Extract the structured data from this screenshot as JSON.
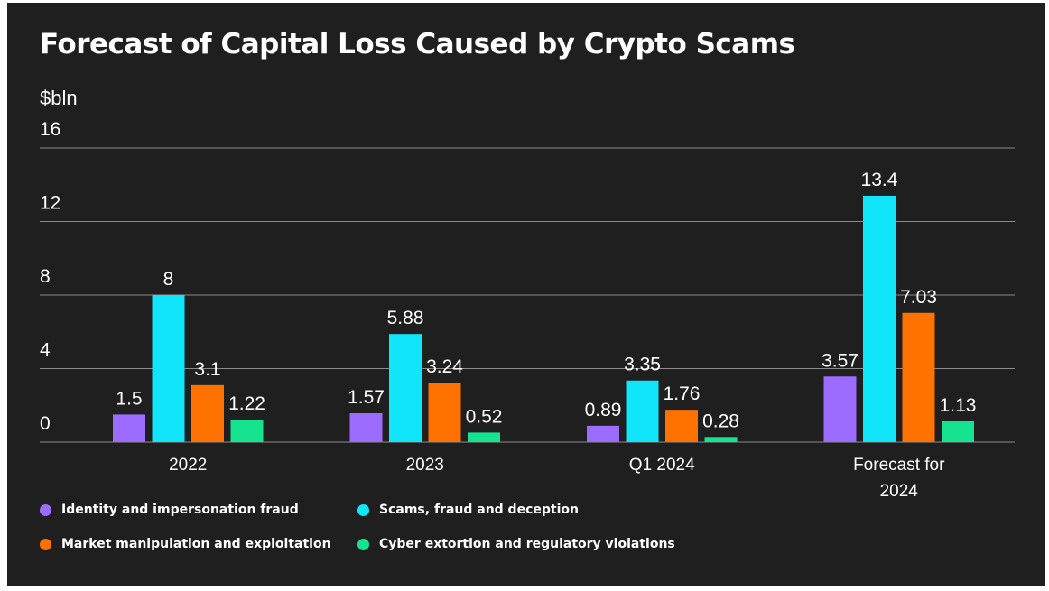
{
  "chart_data": {
    "type": "bar",
    "title": "Forecast of Capital Loss Caused by Crypto Scams",
    "ylabel": "$bln",
    "ylim": [
      0,
      16
    ],
    "yticks": [
      "0",
      "4",
      "8",
      "12",
      "16"
    ],
    "grid": true,
    "legend_position": "bottom",
    "categories": [
      [
        "2022"
      ],
      [
        "2023"
      ],
      [
        "Q1 2024"
      ],
      [
        "Forecast for",
        "2024"
      ]
    ],
    "series": [
      {
        "name": "Identity and impersonation fraud",
        "color": "#9b6cff",
        "values": [
          1.5,
          1.57,
          0.89,
          3.57
        ],
        "labels": [
          "1.5",
          "1.57",
          "0.89",
          "3.57"
        ]
      },
      {
        "name": "Scams, fraud and deception",
        "color": "#11e5fa",
        "values": [
          8,
          5.88,
          3.35,
          13.4
        ],
        "labels": [
          "8",
          "5.88",
          "3.35",
          "13.4"
        ]
      },
      {
        "name": "Market manipulation and exploitation",
        "color": "#ff7200",
        "values": [
          3.1,
          3.24,
          1.76,
          7.03
        ],
        "labels": [
          "3.1",
          "3.24",
          "1.76",
          "7.03"
        ]
      },
      {
        "name": "Cyber extortion and regulatory violations",
        "color": "#16e38f",
        "values": [
          1.22,
          0.52,
          0.28,
          1.13
        ],
        "labels": [
          "1.22",
          "0.52",
          "0.28",
          "1.13"
        ]
      }
    ]
  }
}
